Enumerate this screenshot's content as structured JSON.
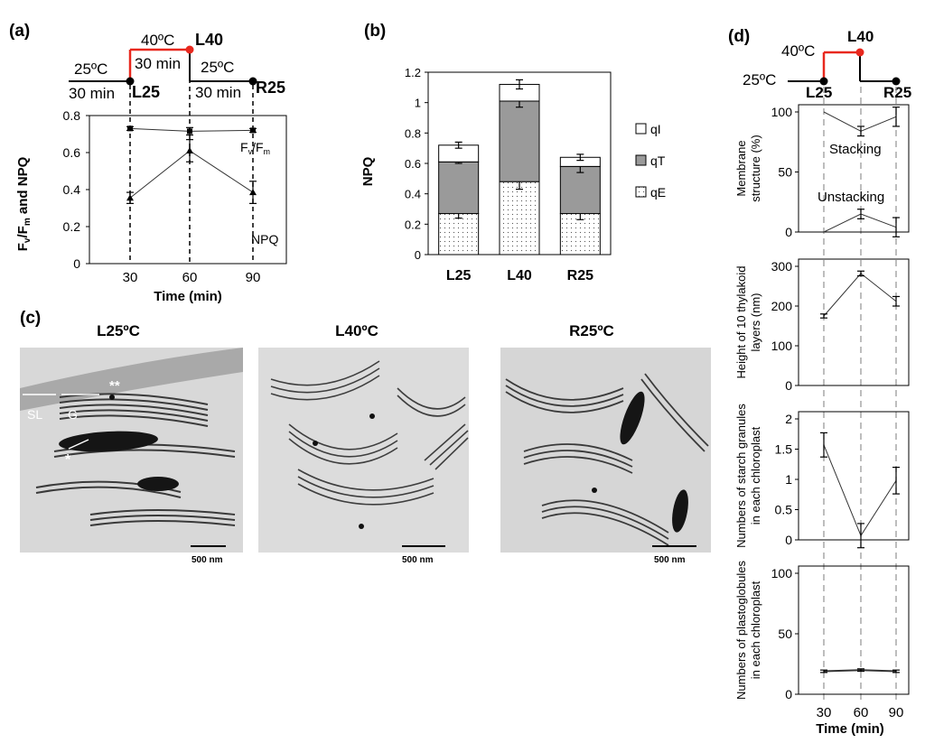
{
  "figure_labels": {
    "a": "(a)",
    "b": "(b)",
    "c": "(c)",
    "d": "(d)"
  },
  "colors": {
    "axis": "#000000",
    "heat": "#e8281e",
    "gray_bar": "#9a9a9a",
    "guide": "#9a9a9a",
    "tem_bg": "#d9d9d9",
    "tem_line": "#3a3a3a"
  },
  "panel_a": {
    "schematic": {
      "temp_low_1": "25ºC",
      "time_1": "30 min",
      "temp_high": "40ºC",
      "time_2": "30 min",
      "temp_low_2": "25ºC",
      "time_3": "30 min",
      "point_labels": [
        "L25",
        "L40",
        "R25"
      ]
    },
    "chart_data": {
      "type": "line",
      "x": [
        30,
        60,
        90
      ],
      "xticks": [
        "30",
        "60",
        "90"
      ],
      "ylim": [
        0,
        0.8
      ],
      "yticks": [
        "0",
        "0.2",
        "0.4",
        "0.6",
        "0.8"
      ],
      "xlabel": "Time (min)",
      "ylabel": "Fv/Fm and NPQ",
      "series": [
        {
          "name": "Fv/Fm",
          "values": [
            0.73,
            0.715,
            0.72
          ],
          "errors": [
            0.01,
            0.02,
            0.01
          ]
        },
        {
          "name": "NPQ",
          "values": [
            0.355,
            0.61,
            0.385
          ],
          "errors": [
            0.03,
            0.06,
            0.06
          ]
        }
      ]
    }
  },
  "panel_b": {
    "chart_data": {
      "type": "bar",
      "stacked": true,
      "categories": [
        "L25",
        "L40",
        "R25"
      ],
      "ylabel": "NPQ",
      "ylim": [
        0,
        1.2
      ],
      "yticks": [
        "0",
        "0.2",
        "0.4",
        "0.6",
        "0.8",
        "1",
        "1.2"
      ],
      "series": [
        {
          "name": "qE",
          "values": [
            0.27,
            0.48,
            0.27
          ],
          "errors": [
            0.03,
            0.05,
            0.04
          ]
        },
        {
          "name": "qT",
          "values": [
            0.34,
            0.53,
            0.31
          ],
          "errors": [
            0.01,
            0.04,
            0.04
          ]
        },
        {
          "name": "qI",
          "values": [
            0.11,
            0.11,
            0.06
          ],
          "errors": [
            0.02,
            0.03,
            0.02
          ]
        }
      ],
      "legend_order": [
        "qI",
        "qT",
        "qE"
      ],
      "legend_position": "right"
    }
  },
  "panel_c": {
    "titles": [
      "L25ºC",
      "L40ºC",
      "R25ºC"
    ],
    "scale_bar": "500 nm",
    "annotations": {
      "sl": "SL",
      "g": "G",
      "star1": "**",
      "star2": "*"
    }
  },
  "panel_d": {
    "schematic": {
      "temp_high": "40ºC",
      "temp_low": "25ºC",
      "point_labels": [
        "L25",
        "L40",
        "R25"
      ]
    },
    "xticks": [
      "30",
      "60",
      "90"
    ],
    "xlabel": "Time (min)",
    "chart_data": [
      {
        "type": "line",
        "x": [
          30,
          60,
          90
        ],
        "ylabel_lines": [
          "Membrane",
          "structure (%)"
        ],
        "ylim": [
          0,
          100
        ],
        "yticks": [
          "0",
          "50",
          "100"
        ],
        "series": [
          {
            "name": "Stacking",
            "values": [
              100,
              84,
              96
            ],
            "errors": [
              0,
              4,
              8
            ]
          },
          {
            "name": "Unstacking",
            "values": [
              0,
              15,
              4
            ],
            "errors": [
              0,
              4,
              8
            ]
          }
        ]
      },
      {
        "type": "line",
        "x": [
          30,
          60,
          90
        ],
        "ylabel_lines": [
          "Height of 10 thylakoid",
          "layers (nm)"
        ],
        "ylim": [
          0,
          300
        ],
        "yticks": [
          "0",
          "100",
          "200",
          "300"
        ],
        "series": [
          {
            "values": [
              175,
              282,
              212
            ],
            "errors": [
              5,
              6,
              12
            ]
          }
        ]
      },
      {
        "type": "line",
        "x": [
          30,
          60,
          90
        ],
        "ylabel_lines": [
          "Numbers of starch granules",
          "in each chloroplast"
        ],
        "ylim": [
          0,
          2
        ],
        "yticks": [
          "0",
          "0.5",
          "1",
          "1.5",
          "2"
        ],
        "series": [
          {
            "values": [
              1.57,
              0.07,
              0.98
            ],
            "errors": [
              0.2,
              0.2,
              0.22
            ]
          }
        ]
      },
      {
        "type": "line",
        "x": [
          30,
          60,
          90
        ],
        "ylabel_lines": [
          "Numbers of plastoglobules",
          "in each chloroplast"
        ],
        "ylim": [
          0,
          100
        ],
        "yticks": [
          "0",
          "50",
          "100"
        ],
        "series": [
          {
            "values": [
              19,
              20,
              19
            ],
            "errors": [
              1,
              1,
              1
            ]
          }
        ]
      }
    ]
  }
}
